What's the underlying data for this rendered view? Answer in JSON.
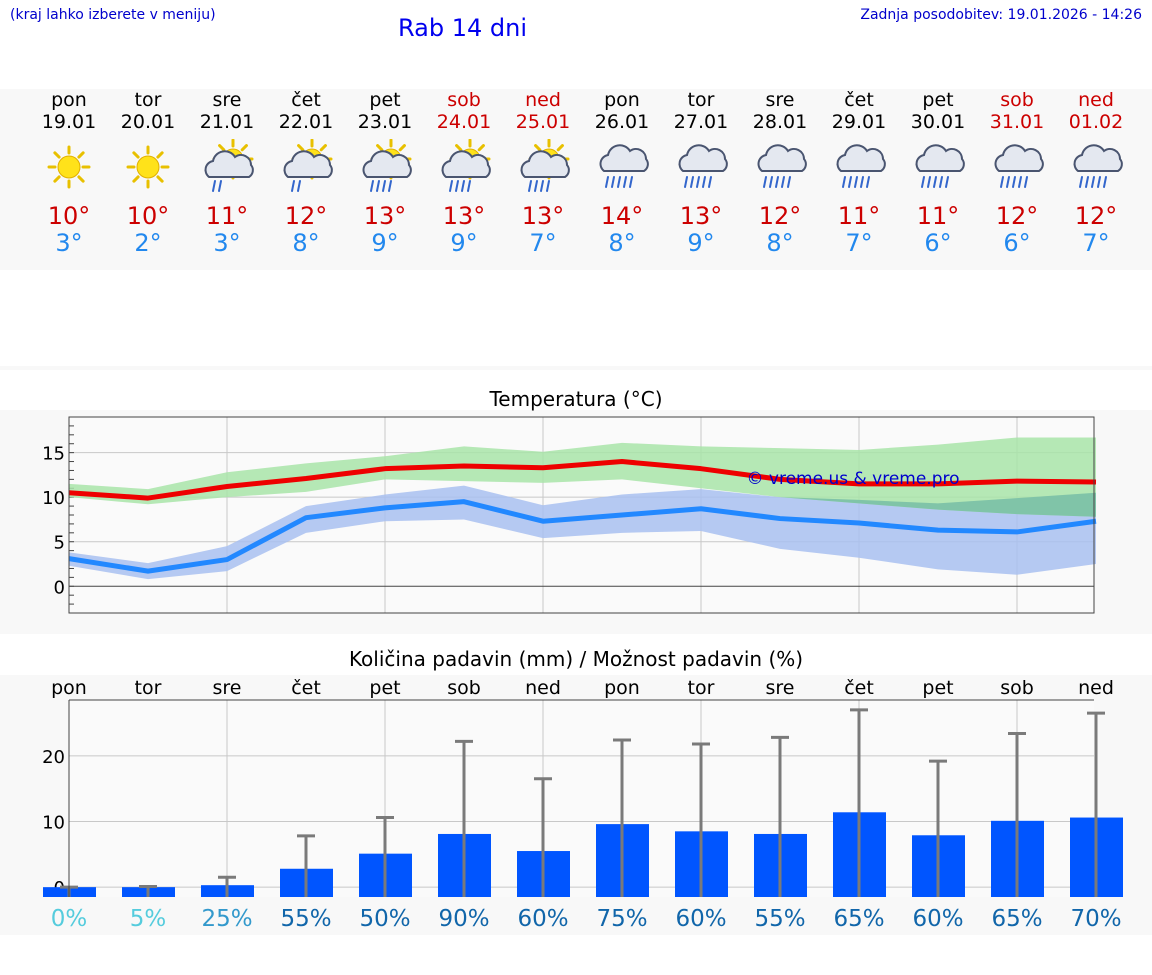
{
  "header": {
    "menu_hint": "(kraj lahko izberete v meniju)",
    "title": "Rab 14 dni",
    "last_update": "Zadnja posodobitev: 19.01.2026 - 14:26"
  },
  "colors": {
    "max_line": "#ee0000",
    "min_line": "#2288ff",
    "max_band": "#a8e4a8",
    "min_band": "#a8bff0",
    "overlap_band": "#80c4a8",
    "precip_bar": "#0055ff",
    "watermark": "#0000cc"
  },
  "days": [
    {
      "name": "pon",
      "date": "19.01",
      "icon": "sun-icon",
      "tmax": "10°",
      "tmin": "3°",
      "weekend": false
    },
    {
      "name": "tor",
      "date": "20.01",
      "icon": "sun-icon",
      "tmax": "10°",
      "tmin": "2°",
      "weekend": false
    },
    {
      "name": "sre",
      "date": "21.01",
      "icon": "sun-cloud-rain-icon",
      "tmax": "11°",
      "tmin": "3°",
      "weekend": false
    },
    {
      "name": "čet",
      "date": "22.01",
      "icon": "sun-cloud-rain-icon",
      "tmax": "12°",
      "tmin": "8°",
      "weekend": false
    },
    {
      "name": "pet",
      "date": "23.01",
      "icon": "sun-cloud-heavy-rain-icon",
      "tmax": "13°",
      "tmin": "9°",
      "weekend": false
    },
    {
      "name": "sob",
      "date": "24.01",
      "icon": "sun-cloud-heavy-rain-icon",
      "tmax": "13°",
      "tmin": "9°",
      "weekend": true
    },
    {
      "name": "ned",
      "date": "25.01",
      "icon": "sun-cloud-heavy-rain-icon",
      "tmax": "13°",
      "tmin": "7°",
      "weekend": true
    },
    {
      "name": "pon",
      "date": "26.01",
      "icon": "cloud-rain-icon",
      "tmax": "14°",
      "tmin": "8°",
      "weekend": false
    },
    {
      "name": "tor",
      "date": "27.01",
      "icon": "cloud-rain-icon",
      "tmax": "13°",
      "tmin": "9°",
      "weekend": false
    },
    {
      "name": "sre",
      "date": "28.01",
      "icon": "cloud-rain-icon",
      "tmax": "12°",
      "tmin": "8°",
      "weekend": false
    },
    {
      "name": "čet",
      "date": "29.01",
      "icon": "cloud-rain-icon",
      "tmax": "11°",
      "tmin": "7°",
      "weekend": false
    },
    {
      "name": "pet",
      "date": "30.01",
      "icon": "cloud-rain-icon",
      "tmax": "11°",
      "tmin": "6°",
      "weekend": false
    },
    {
      "name": "sob",
      "date": "31.01",
      "icon": "cloud-rain-icon",
      "tmax": "12°",
      "tmin": "6°",
      "weekend": true
    },
    {
      "name": "ned",
      "date": "01.02",
      "icon": "cloud-rain-icon",
      "tmax": "12°",
      "tmin": "7°",
      "weekend": true
    }
  ],
  "chart_data": [
    {
      "type": "line",
      "title": "Temperatura (°C)",
      "watermark": "© vreme.us & vreme.pro",
      "x_index": [
        0,
        1,
        2,
        3,
        4,
        5,
        6,
        7,
        8,
        9,
        10,
        11,
        12,
        13
      ],
      "ylim": [
        -3,
        19
      ],
      "yticks": [
        "0",
        "5",
        "10",
        "15"
      ],
      "ytick_values": [
        0,
        5,
        10,
        15
      ],
      "series": [
        {
          "name": "max",
          "values": [
            10.5,
            9.9,
            11.2,
            12.1,
            13.2,
            13.5,
            13.3,
            14.0,
            13.2,
            12.0,
            11.5,
            11.5,
            11.8,
            11.7
          ]
        },
        {
          "name": "min",
          "values": [
            3.1,
            1.7,
            3.0,
            7.7,
            8.8,
            9.5,
            7.3,
            8.0,
            8.7,
            7.6,
            7.1,
            6.3,
            6.1,
            7.3
          ]
        }
      ],
      "bands": [
        {
          "name": "max-range",
          "low": [
            10.0,
            9.2,
            10.0,
            10.6,
            12.0,
            11.8,
            11.6,
            12.0,
            11.0,
            10.0,
            9.3,
            8.6,
            8.1,
            7.8
          ],
          "high": [
            11.5,
            10.9,
            12.8,
            13.8,
            14.6,
            15.7,
            15.1,
            16.1,
            15.7,
            15.5,
            15.3,
            15.9,
            16.7,
            16.7
          ]
        },
        {
          "name": "min-range",
          "low": [
            2.3,
            0.8,
            1.7,
            6.0,
            7.3,
            7.5,
            5.4,
            6.0,
            6.2,
            4.2,
            3.2,
            1.9,
            1.3,
            2.5
          ],
          "high": [
            3.8,
            2.6,
            4.5,
            9.0,
            10.3,
            11.3,
            9.1,
            10.3,
            10.9,
            10.0,
            9.7,
            9.3,
            9.9,
            10.5
          ]
        }
      ]
    },
    {
      "type": "bar",
      "title": "Količina padavin (mm) / Možnost padavin (%)",
      "categories": [
        "pon",
        "tor",
        "sre",
        "čet",
        "pet",
        "sob",
        "ned",
        "pon",
        "tor",
        "sre",
        "čet",
        "pet",
        "sob",
        "ned"
      ],
      "ylim": [
        -1.5,
        28.5
      ],
      "yticks": [
        "0",
        "10",
        "20"
      ],
      "ytick_values": [
        0,
        10,
        20
      ],
      "series": [
        {
          "name": "precip_mm",
          "values": [
            0.0,
            0.0,
            0.3,
            2.8,
            5.1,
            8.1,
            5.5,
            9.6,
            8.5,
            8.1,
            11.4,
            7.9,
            10.1,
            10.6
          ]
        },
        {
          "name": "precip_max_mm",
          "values": [
            0.0,
            0.1,
            1.5,
            7.8,
            10.6,
            22.2,
            16.5,
            22.4,
            21.8,
            22.8,
            27.0,
            19.2,
            23.4,
            26.5
          ]
        }
      ],
      "probabilities": [
        "0%",
        "5%",
        "25%",
        "55%",
        "50%",
        "90%",
        "60%",
        "75%",
        "60%",
        "55%",
        "65%",
        "60%",
        "65%",
        "70%"
      ],
      "probability_colors": [
        "#55ccdd",
        "#55ccdd",
        "#3399cc",
        "#1166aa",
        "#1166aa",
        "#1166aa",
        "#1166aa",
        "#1166aa",
        "#1166aa",
        "#1166aa",
        "#1166aa",
        "#1166aa",
        "#1166aa",
        "#1166aa"
      ]
    }
  ]
}
